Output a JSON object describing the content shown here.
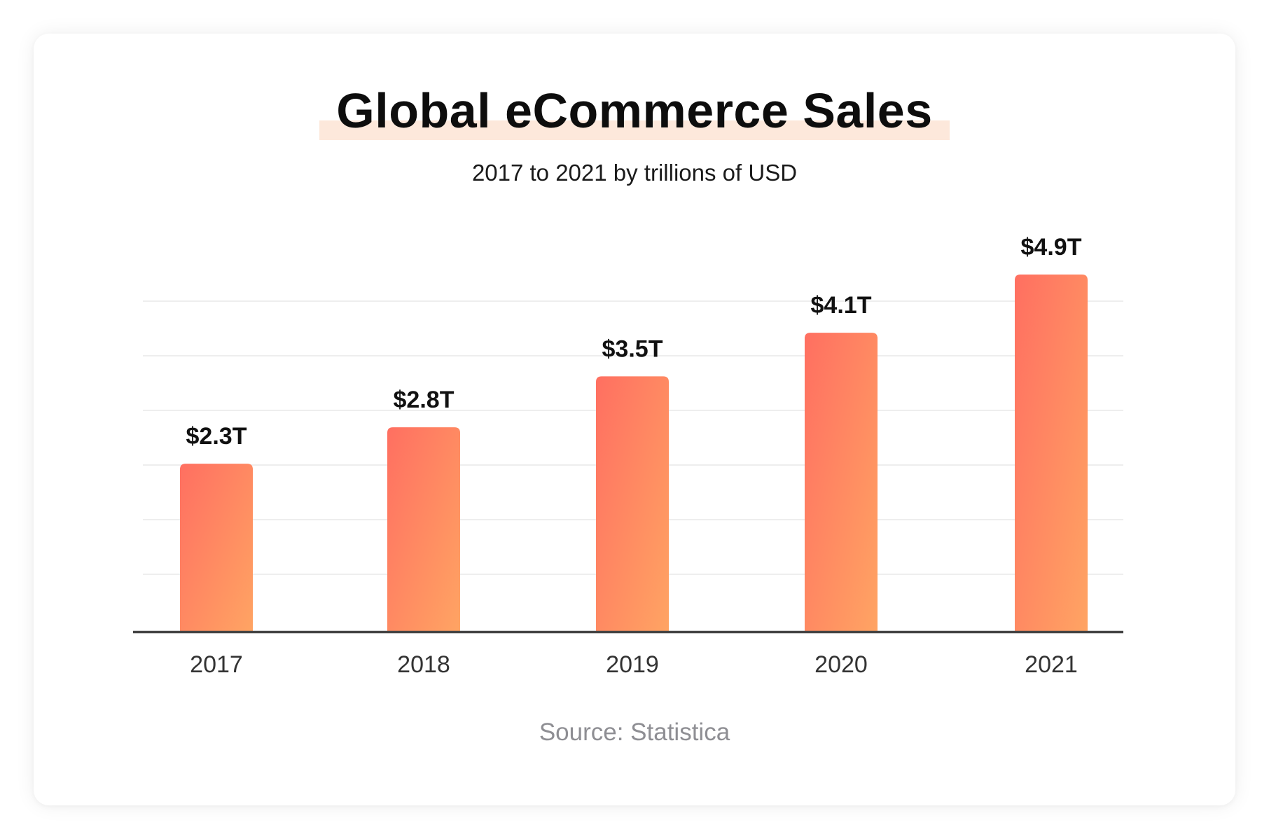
{
  "colors": {
    "bar_start": "#ff6f61",
    "bar_end": "#ffa463",
    "title_highlight": "#fde8db",
    "gridline": "#e9e9e9",
    "axis": "#444444",
    "source_text": "#8e8e93"
  },
  "chart_data": {
    "type": "bar",
    "title": "Global eCommerce Sales",
    "subtitle": "2017 to 2021 by trillions of USD",
    "categories": [
      "2017",
      "2018",
      "2019",
      "2020",
      "2021"
    ],
    "values": [
      2.3,
      2.8,
      3.5,
      4.1,
      4.9
    ],
    "value_labels": [
      "$2.3T",
      "$2.8T",
      "$3.5T",
      "$4.1T",
      "$4.9T"
    ],
    "xlabel": "",
    "ylabel": "",
    "ylim": [
      0,
      4.9
    ],
    "grid": true,
    "legend": "none",
    "source": "Source: Statistica"
  }
}
